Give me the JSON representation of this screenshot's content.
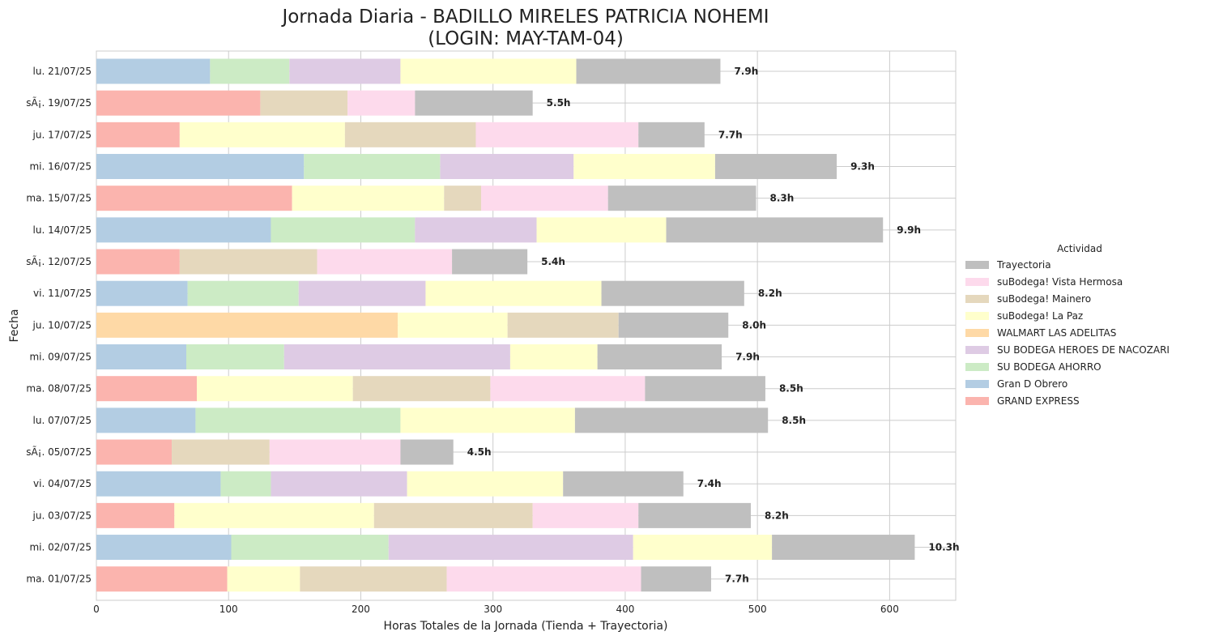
{
  "chart_data": {
    "type": "bar",
    "orientation": "horizontal",
    "stacked": true,
    "title": "Jornada Diaria - BADILLO MIRELES PATRICIA NOHEMI",
    "subtitle": "(LOGIN: MAY-TAM-04)",
    "xlabel": "Horas Totales de la Jornada (Tienda + Trayectoria)",
    "ylabel": "Fecha",
    "xlim": [
      0,
      650
    ],
    "xticks": [
      0,
      100,
      200,
      300,
      400,
      500,
      600
    ],
    "grid": true,
    "legend_title": "Actividad",
    "legend_position": "right",
    "categories": [
      "lu. 21/07/25",
      "sÃ¡. 19/07/25",
      "ju. 17/07/25",
      "mi. 16/07/25",
      "ma. 15/07/25",
      "lu. 14/07/25",
      "sÃ¡. 12/07/25",
      "vi. 11/07/25",
      "ju. 10/07/25",
      "mi. 09/07/25",
      "ma. 08/07/25",
      "lu. 07/07/25",
      "sÃ¡. 05/07/25",
      "vi. 04/07/25",
      "ju. 03/07/25",
      "mi. 02/07/25",
      "ma. 01/07/25"
    ],
    "totals_labels": [
      "7.9h",
      "5.5h",
      "7.7h",
      "9.3h",
      "8.3h",
      "9.9h",
      "5.4h",
      "8.2h",
      "8.0h",
      "7.9h",
      "8.5h",
      "8.5h",
      "4.5h",
      "7.4h",
      "8.2h",
      "10.3h",
      "7.7h"
    ],
    "series": [
      {
        "name": "GRAND EXPRESS",
        "color": "#fbb4ae",
        "values": [
          0,
          124,
          63,
          0,
          148,
          0,
          63,
          0,
          0,
          0,
          76,
          0,
          57,
          0,
          59,
          0,
          99
        ]
      },
      {
        "name": "Gran D Obrero",
        "color": "#b3cde3",
        "values": [
          86,
          0,
          0,
          157,
          0,
          132,
          0,
          69,
          0,
          68,
          0,
          75,
          0,
          94,
          0,
          102,
          0
        ]
      },
      {
        "name": "SU BODEGA AHORRO",
        "color": "#ccebc5",
        "values": [
          60,
          0,
          0,
          103,
          0,
          109,
          0,
          84,
          0,
          74,
          0,
          155,
          0,
          38,
          0,
          119,
          0
        ]
      },
      {
        "name": "SU BODEGA HEROES DE NACOZARI",
        "color": "#decbe4",
        "values": [
          84,
          0,
          0,
          101,
          0,
          92,
          0,
          96,
          0,
          171,
          0,
          0,
          0,
          103,
          0,
          185,
          0
        ]
      },
      {
        "name": "WALMART LAS ADELITAS",
        "color": "#fed9a6",
        "values": [
          0,
          0,
          0,
          0,
          0,
          0,
          0,
          0,
          228,
          0,
          0,
          0,
          0,
          0,
          0,
          0,
          0
        ]
      },
      {
        "name": "suBodega! La Paz",
        "color": "#ffffcc",
        "values": [
          133,
          0,
          125,
          107,
          115,
          98,
          0,
          133,
          83,
          66,
          118,
          132,
          0,
          118,
          151,
          105,
          55
        ]
      },
      {
        "name": "suBodega! Mainero",
        "color": "#e5d8bd",
        "values": [
          0,
          66,
          99,
          0,
          28,
          0,
          104,
          0,
          84,
          0,
          104,
          0,
          74,
          0,
          120,
          0,
          111
        ]
      },
      {
        "name": "suBodega! Vista Hermosa",
        "color": "#fddaec",
        "values": [
          0,
          51,
          123,
          0,
          96,
          0,
          102,
          0,
          0,
          0,
          117,
          0,
          99,
          0,
          80,
          0,
          147
        ]
      },
      {
        "name": "Trayectoria",
        "color": "#bfbfbf",
        "values": [
          109,
          89,
          50,
          92,
          112,
          164,
          57,
          108,
          83,
          94,
          91,
          146,
          40,
          91,
          85,
          108,
          53
        ]
      }
    ],
    "legend_order": [
      "Trayectoria",
      "suBodega! Vista Hermosa",
      "suBodega! Mainero",
      "suBodega! La Paz",
      "WALMART LAS ADELITAS",
      "SU BODEGA HEROES DE NACOZARI",
      "SU BODEGA AHORRO",
      "Gran D Obrero",
      "GRAND EXPRESS"
    ]
  }
}
